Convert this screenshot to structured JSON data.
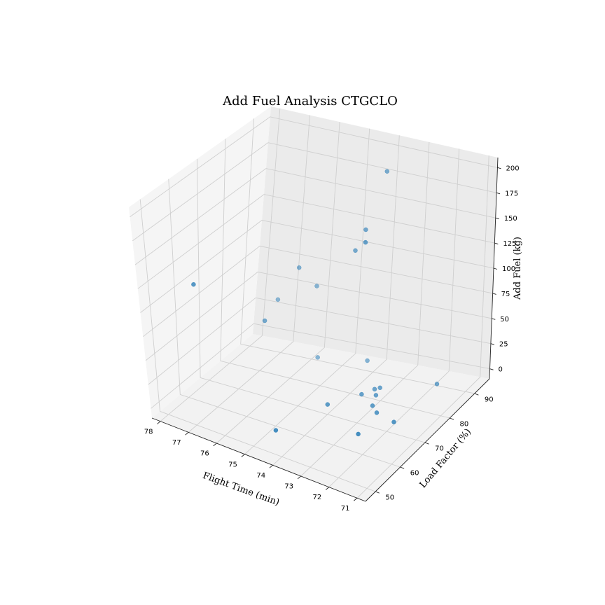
{
  "chart_data": {
    "type": "scatter3d",
    "title": "Add Fuel Analysis CTGCLO",
    "xlabel": "Flight Time (min)",
    "ylabel": "Load Factor (%)",
    "zlabel": "Add Fuel (kg)",
    "xlim": [
      70.7,
      78.3
    ],
    "ylim": [
      46,
      96
    ],
    "zlim": [
      -10,
      210
    ],
    "x_ticks": [
      71,
      72,
      73,
      74,
      75,
      76,
      77,
      78
    ],
    "y_ticks": [
      50,
      60,
      70,
      80,
      90
    ],
    "z_ticks": [
      0,
      25,
      50,
      75,
      100,
      125,
      150,
      175,
      200
    ],
    "grid": true,
    "marker_color": "#1f77b4",
    "points": [
      {
        "x": 74.6,
        "y": 55,
        "z": 0
      },
      {
        "x": 72.5,
        "y": 72,
        "z": 0
      },
      {
        "x": 71.8,
        "y": 70.5,
        "z": 0
      },
      {
        "x": 71.7,
        "y": 87,
        "z": 0
      },
      {
        "x": 72.4,
        "y": 63,
        "z": 0
      },
      {
        "x": 72.8,
        "y": 74,
        "z": 0
      },
      {
        "x": 73.0,
        "y": 78,
        "z": 0
      },
      {
        "x": 73.2,
        "y": 80,
        "z": 0
      },
      {
        "x": 73.1,
        "y": 81,
        "z": 0
      },
      {
        "x": 73.4,
        "y": 77,
        "z": 0
      },
      {
        "x": 74.0,
        "y": 70,
        "z": 0
      },
      {
        "x": 75.6,
        "y": 87,
        "z": 0
      },
      {
        "x": 74.2,
        "y": 90,
        "z": 0
      },
      {
        "x": 76.9,
        "y": 86,
        "z": 50
      },
      {
        "x": 76.5,
        "y": 75,
        "z": 53
      },
      {
        "x": 75.8,
        "y": 88,
        "z": 67
      },
      {
        "x": 76.1,
        "y": 84,
        "z": 91
      },
      {
        "x": 77.3,
        "y": 56,
        "z": 120
      },
      {
        "x": 74.2,
        "y": 83,
        "z": 124
      },
      {
        "x": 73.8,
        "y": 82,
        "z": 150
      },
      {
        "x": 73.3,
        "y": 76,
        "z": 155
      },
      {
        "x": 73.5,
        "y": 86,
        "z": 201
      }
    ]
  }
}
